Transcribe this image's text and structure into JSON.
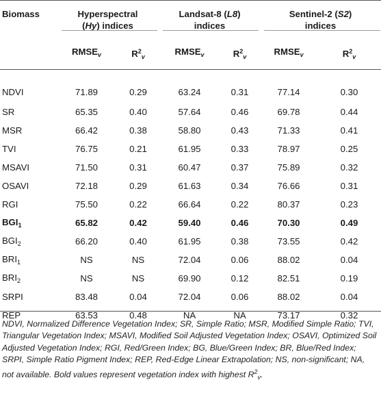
{
  "header": {
    "biomass": "Biomass",
    "groups": [
      {
        "line1": "Hyperspectral",
        "line2_pre": "(",
        "line2_it": "Hy",
        "line2_post": ") indices"
      },
      {
        "line1_pre": "Landsat-8 (",
        "line1_it": "L8",
        "line1_post": ")",
        "line2": "indices"
      },
      {
        "line1_pre": "Sentinel-2 (",
        "line1_it": "S2",
        "line1_post": ")",
        "line2": "indices"
      }
    ],
    "rmse_base": "RMSE",
    "rmse_sub": "v",
    "r2_base": "R",
    "r2_sup": "2",
    "r2_sub": "v"
  },
  "rows": [
    {
      "name": "NDVI",
      "sub": "",
      "bold": false,
      "values": [
        "71.89",
        "0.29",
        "63.24",
        "0.31",
        "77.14",
        "0.30"
      ]
    },
    {
      "name": "SR",
      "sub": "",
      "bold": false,
      "values": [
        "65.35",
        "0.40",
        "57.64",
        "0.46",
        "69.78",
        "0.44"
      ]
    },
    {
      "name": "MSR",
      "sub": "",
      "bold": false,
      "values": [
        "66.42",
        "0.38",
        "58.80",
        "0.43",
        "71.33",
        "0.41"
      ]
    },
    {
      "name": "TVI",
      "sub": "",
      "bold": false,
      "values": [
        "76.75",
        "0.21",
        "61.95",
        "0.33",
        "78.97",
        "0.25"
      ]
    },
    {
      "name": "MSAVI",
      "sub": "",
      "bold": false,
      "values": [
        "71.50",
        "0.31",
        "60.47",
        "0.37",
        "75.89",
        "0.32"
      ]
    },
    {
      "name": "OSAVI",
      "sub": "",
      "bold": false,
      "values": [
        "72.18",
        "0.29",
        "61.63",
        "0.34",
        "76.66",
        "0.31"
      ]
    },
    {
      "name": "RGI",
      "sub": "",
      "bold": false,
      "values": [
        "75.50",
        "0.22",
        "66.64",
        "0.22",
        "80.37",
        "0.23"
      ]
    },
    {
      "name": "BGI",
      "sub": "1",
      "bold": true,
      "values": [
        "65.82",
        "0.42",
        "59.40",
        "0.46",
        "70.30",
        "0.49"
      ]
    },
    {
      "name": "BGI",
      "sub": "2",
      "bold": false,
      "values": [
        "66.20",
        "0.40",
        "61.95",
        "0.38",
        "73.55",
        "0.42"
      ]
    },
    {
      "name": "BRI",
      "sub": "1",
      "bold": false,
      "values": [
        "NS",
        "NS",
        "72.04",
        "0.06",
        "88.02",
        "0.04"
      ]
    },
    {
      "name": "BRI",
      "sub": "2",
      "bold": false,
      "values": [
        "NS",
        "NS",
        "69.90",
        "0.12",
        "82.51",
        "0.19"
      ]
    },
    {
      "name": "SRPI",
      "sub": "",
      "bold": false,
      "values": [
        "83.48",
        "0.04",
        "72.04",
        "0.06",
        "88.02",
        "0.04"
      ]
    },
    {
      "name": "REP",
      "sub": "",
      "bold": false,
      "values": [
        "63.53",
        "0.48",
        "NA",
        "NA",
        "73.17",
        "0.32"
      ]
    }
  ],
  "footnote": {
    "main": "NDVI, Normalized Difference Vegetation Index; SR, Simple Ratio; MSR, Modified Simple Ratio; TVI, Triangular Vegetation Index; MSAVI, Modified Soil Adjusted Vegetation Index; OSAVI, Optimized Soil Adjusted Vegetation Index; RGI, Red/Green Index; BG, Blue/Green Index; BR, Blue/Red Index; SRPI, Simple Ratio Pigment Index; REP, Red-Edge Linear Extrapolation; NS, non-significant; NA, not available. Bold values represent vegetation index with highest R",
    "sup": "2",
    "sub": "v",
    "end": "."
  }
}
